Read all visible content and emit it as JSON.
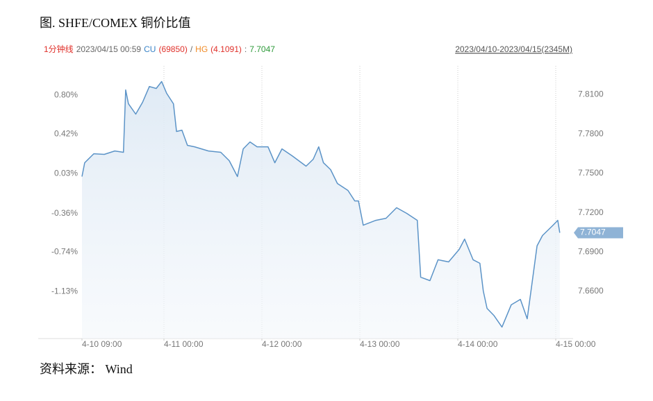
{
  "chart_data": {
    "type": "line",
    "title": "图. SHFE/COMEX 铜价比值",
    "source": "资料来源： Wind",
    "header_segments": [
      {
        "text": "1分钟线",
        "color": "#e0302a"
      },
      {
        "text": "2023/04/15 00:59",
        "color": "#666666"
      },
      {
        "text": "CU",
        "color": "#3a84c8"
      },
      {
        "text": "(69850)",
        "color": "#e0302a"
      },
      {
        "text": "/",
        "color": "#666666"
      },
      {
        "text": "HG",
        "color": "#f08a24"
      },
      {
        "text": "(4.1091)",
        "color": "#e0302a"
      },
      {
        "text": ":",
        "color": "#666666"
      }
    ],
    "range_label": "2023/04/10-2023/04/15(2345M)",
    "last_value": 7.7047,
    "x": [
      "4-10 09:00",
      "4-10 09:30",
      "4-10 11:10",
      "4-10 13:05",
      "4-10 15:00",
      "4-10 16:35",
      "4-10 17:00",
      "4-10 17:30",
      "4-10 18:50",
      "4-10 20:05",
      "4-10 21:20",
      "4-10 22:35",
      "4-10 23:35",
      "4-11 00:40",
      "4-11 02:20",
      "4-11 03:05",
      "4-11 04:25",
      "4-11 05:45",
      "4-11 07:30",
      "4-11 10:55",
      "4-11 13:55",
      "4-11 16:00",
      "4-11 18:00",
      "4-11 19:25",
      "4-11 21:05",
      "4-11 22:50",
      "4-12 01:30",
      "4-12 03:10",
      "4-12 04:55",
      "4-12 07:25",
      "4-12 10:50",
      "4-12 12:35",
      "4-12 13:55",
      "4-12 15:05",
      "4-12 16:50",
      "4-12 18:30",
      "4-12 21:05",
      "4-12 22:45",
      "4-12 23:40",
      "4-13 00:50",
      "4-13 03:55",
      "4-13 06:25",
      "4-13 09:00",
      "4-13 11:30",
      "4-13 14:05",
      "4-13 14:55",
      "4-13 17:10",
      "4-13 19:10",
      "4-13 21:45",
      "4-14 00:20",
      "4-14 01:40",
      "4-14 03:45",
      "4-14 05:25",
      "4-14 06:15",
      "4-14 07:10",
      "4-14 08:50",
      "4-14 10:50",
      "4-14 13:05",
      "4-14 15:20",
      "4-14 17:00",
      "4-14 18:10",
      "4-14 19:25",
      "4-14 20:45",
      "4-14 23:20",
      "4-15 00:30",
      "4-15 00:59"
    ],
    "series": [
      {
        "color": "#5b93c7",
        "axis": "y2",
        "values": [
          7.7476,
          7.7581,
          7.765,
          7.7645,
          7.7671,
          7.7661,
          7.8137,
          7.8031,
          7.7952,
          7.8042,
          7.8163,
          7.8148,
          7.8201,
          7.8111,
          7.8031,
          7.782,
          7.783,
          7.7714,
          7.7703,
          7.7671,
          7.7661,
          7.7597,
          7.7476,
          7.7687,
          7.774,
          7.7703,
          7.7703,
          7.7581,
          7.7687,
          7.7634,
          7.7555,
          7.7608,
          7.7703,
          7.7581,
          7.7529,
          7.7423,
          7.737,
          7.729,
          7.729,
          7.7105,
          7.7142,
          7.7158,
          7.7238,
          7.7195,
          7.7142,
          7.6708,
          7.6682,
          7.6841,
          7.6825,
          7.692,
          7.6999,
          7.6841,
          7.6814,
          7.6603,
          7.647,
          7.6417,
          7.6328,
          7.6497,
          7.6539,
          7.6391,
          7.6656,
          7.6947,
          7.7026,
          7.7105,
          7.7142,
          7.7047
        ]
      }
    ],
    "xticks": [
      "4-10 09:00",
      "4-11 00:00",
      "4-12 00:00",
      "4-13 00:00",
      "4-14 00:00",
      "4-15 00:00"
    ],
    "ylim": [
      -1.59,
      1.09
    ],
    "yticks": [
      {
        "value": 0.8,
        "label": "0.80%"
      },
      {
        "value": 0.42,
        "label": "0.42%"
      },
      {
        "value": 0.03,
        "label": "0.03%"
      },
      {
        "value": -0.36,
        "label": "-0.36%"
      },
      {
        "value": -0.74,
        "label": "-0.74%"
      },
      {
        "value": -1.13,
        "label": "-1.13%"
      }
    ],
    "y2lim": [
      7.624,
      7.832
    ],
    "y2ticks": [
      {
        "value": 7.81,
        "label": "7.8100"
      },
      {
        "value": 7.78,
        "label": "7.7800"
      },
      {
        "value": 7.75,
        "label": "7.7500"
      },
      {
        "value": 7.72,
        "label": "7.7200"
      },
      {
        "value": 7.69,
        "label": "7.6900"
      },
      {
        "value": 7.66,
        "label": "7.6600"
      }
    ],
    "grid": true
  }
}
